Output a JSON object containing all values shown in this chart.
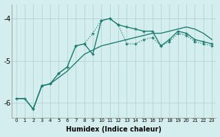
{
  "xlabel": "Humidex (Indice chaleur)",
  "bg_color": "#d4eeee",
  "line_color": "#1a7a6e",
  "grid_color": "#aed4d4",
  "xlim": [
    -0.5,
    23.5
  ],
  "ylim": [
    -6.35,
    -3.65
  ],
  "yticks": [
    -6,
    -5,
    -4
  ],
  "xticks": [
    0,
    1,
    2,
    3,
    4,
    5,
    6,
    7,
    8,
    9,
    10,
    11,
    12,
    13,
    14,
    15,
    16,
    17,
    18,
    19,
    20,
    21,
    22,
    23
  ],
  "line1_x": [
    0,
    1,
    2,
    3,
    4,
    5,
    6,
    7,
    8,
    9,
    10,
    11,
    12,
    13,
    14,
    15,
    16,
    17,
    18,
    19,
    20,
    21,
    22,
    23
  ],
  "line1_y": [
    -5.9,
    -5.9,
    -6.15,
    -5.6,
    -5.55,
    -5.4,
    -5.25,
    -5.05,
    -4.85,
    -4.75,
    -4.65,
    -4.6,
    -4.55,
    -4.5,
    -4.45,
    -4.4,
    -4.35,
    -4.35,
    -4.3,
    -4.25,
    -4.2,
    -4.25,
    -4.35,
    -4.5
  ],
  "line2_x": [
    0,
    1,
    2,
    3,
    4,
    5,
    6,
    7,
    8,
    9,
    10,
    11,
    12,
    13,
    14,
    15,
    16,
    17,
    18,
    19,
    20,
    21,
    22,
    23
  ],
  "line2_y": [
    -5.9,
    -5.9,
    -6.15,
    -5.6,
    -5.55,
    -5.3,
    -5.15,
    -4.65,
    -4.6,
    -4.85,
    -4.05,
    -4.0,
    -4.15,
    -4.2,
    -4.25,
    -4.3,
    -4.3,
    -4.65,
    -4.5,
    -4.3,
    -4.35,
    -4.5,
    -4.55,
    -4.6
  ],
  "line3_x": [
    2,
    3,
    4,
    5,
    6,
    7,
    8,
    9,
    10,
    11,
    12,
    13,
    14,
    15,
    16,
    17,
    18,
    19,
    20,
    21,
    22,
    23
  ],
  "line3_y": [
    -6.15,
    -5.6,
    -5.55,
    -5.3,
    -5.15,
    -4.65,
    -4.6,
    -4.35,
    -4.05,
    -4.0,
    -4.15,
    -4.6,
    -4.6,
    -4.5,
    -4.45,
    -4.65,
    -4.55,
    -4.35,
    -4.4,
    -4.55,
    -4.6,
    -4.65
  ]
}
